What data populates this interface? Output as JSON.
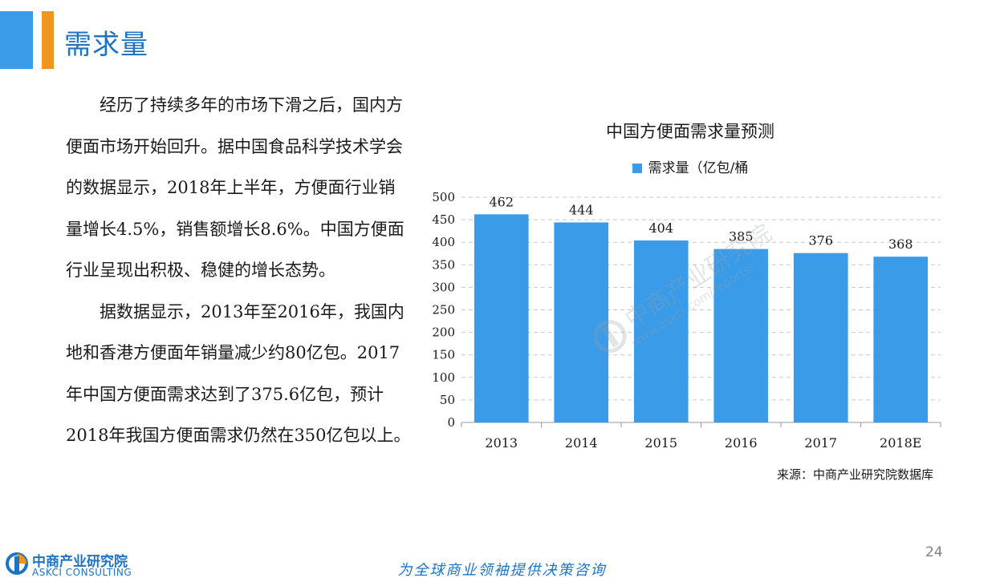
{
  "header": {
    "title": "需求量"
  },
  "body": {
    "paragraphs": [
      "经历了持续多年的市场下滑之后，国内方便面市场开始回升。据中国食品科学技术学会的数据显示，2018年上半年，方便面行业销量增长4.5%，销售额增长8.6%。中国方便面行业呈现出积极、稳健的增长态势。",
      "据数据显示，2013年至2016年，我国内地和香港方便面年销量减少约80亿包。2017年中国方便面需求达到了375.6亿包，预计2018年我国方便面需求仍然在350亿包以上。"
    ]
  },
  "chart_data": {
    "type": "bar",
    "title": "中国方便面需求量预测",
    "categories": [
      "2013",
      "2014",
      "2015",
      "2016",
      "2017",
      "2018E"
    ],
    "series": [
      {
        "name": "需求量（亿包/桶",
        "values": [
          462,
          444,
          404,
          385,
          376,
          368
        ],
        "color": "#3a9be8"
      }
    ],
    "ylim": [
      0,
      500
    ],
    "yticks": [
      0,
      50,
      100,
      150,
      200,
      250,
      300,
      350,
      400,
      450,
      500
    ],
    "grid": true,
    "legend_position": "top"
  },
  "source": "来源：中商产业研究院数据库",
  "watermark": {
    "cn": "中商产业研究院",
    "en": "www.askci.com/reports/"
  },
  "footer": {
    "tagline": "为全球商业领袖提供决策咨询",
    "page_number": "24",
    "logo_cn": "中商产业研究院",
    "logo_en": "ASKCI CONSULTING"
  },
  "colors": {
    "accent_blue": "#3a9be8",
    "accent_orange": "#f0961e",
    "title_blue": "#1c74c4"
  }
}
